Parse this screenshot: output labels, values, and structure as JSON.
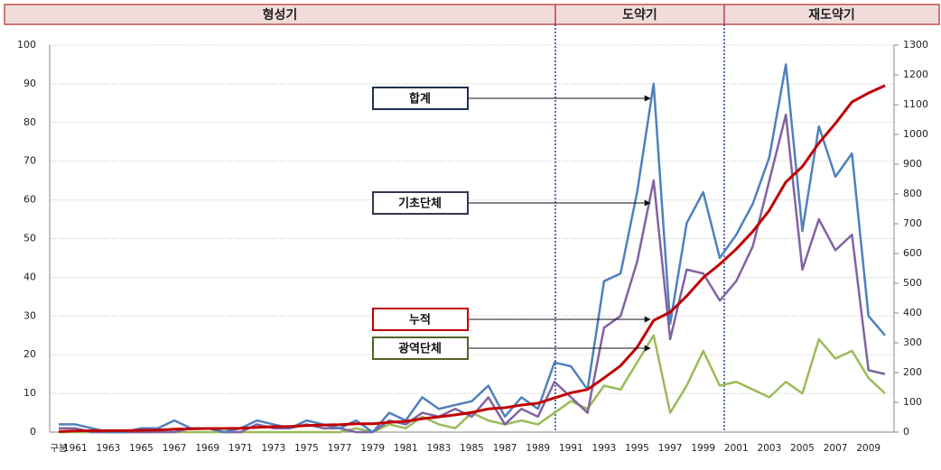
{
  "chart_data": {
    "type": "line",
    "periods": [
      "형성기",
      "도약기",
      "재도약기"
    ],
    "categories": [
      "구분",
      "1961",
      null,
      "1963",
      null,
      "1965",
      null,
      "1967",
      null,
      "1969",
      null,
      "1971",
      null,
      "1973",
      null,
      "1975",
      null,
      "1977",
      null,
      "1979",
      null,
      "1981",
      null,
      "1983",
      null,
      "1985",
      null,
      "1987",
      null,
      "1989",
      null,
      "1991",
      null,
      "1993",
      null,
      "1995",
      null,
      "1997",
      null,
      "1999",
      null,
      "2001",
      null,
      "2003",
      null,
      "2005",
      null,
      "2007",
      null,
      "2009",
      null
    ],
    "series": [
      {
        "name": "합계",
        "color": "#4f81bd",
        "values": [
          2,
          2,
          1,
          0,
          0,
          1,
          1,
          3,
          1,
          1,
          0,
          1,
          3,
          2,
          1,
          3,
          2,
          1,
          3,
          0,
          5,
          3,
          9,
          6,
          7,
          8,
          12,
          4,
          9,
          6,
          18,
          17,
          11,
          39,
          41,
          62,
          90,
          28,
          54,
          62,
          45,
          51,
          59,
          71,
          95,
          52,
          79,
          66,
          72,
          30,
          25
        ]
      },
      {
        "name": "기초단체",
        "color": "#8064a2",
        "values": [
          1,
          1,
          0,
          0,
          0,
          0,
          0,
          0,
          1,
          1,
          0,
          0,
          2,
          1,
          1,
          2,
          1,
          1,
          0,
          0,
          3,
          2,
          5,
          4,
          6,
          4,
          9,
          2,
          6,
          4,
          13,
          9,
          5,
          27,
          30,
          44,
          65,
          24,
          42,
          41,
          34,
          39,
          48,
          65,
          82,
          42,
          55,
          47,
          51,
          16,
          15
        ]
      },
      {
        "name": "광역단체",
        "color": "#9bbb59",
        "values": [
          0,
          0,
          0,
          0,
          0,
          0,
          0,
          0,
          0,
          0,
          0,
          0,
          0,
          0,
          0,
          0,
          0,
          0,
          1,
          0,
          2,
          1,
          4,
          2,
          1,
          5,
          3,
          2,
          3,
          2,
          5,
          8,
          6,
          12,
          11,
          18,
          25,
          5,
          12,
          21,
          12,
          13,
          11,
          9,
          13,
          10,
          24,
          19,
          21,
          14,
          10
        ]
      },
      {
        "name": "누적",
        "color": "#c00000",
        "axis": "y2",
        "values": [
          2,
          4,
          5,
          5,
          5,
          6,
          7,
          10,
          11,
          12,
          12,
          13,
          16,
          18,
          19,
          22,
          24,
          25,
          28,
          28,
          33,
          36,
          45,
          51,
          58,
          66,
          78,
          82,
          91,
          97,
          115,
          132,
          143,
          182,
          223,
          285,
          375,
          403,
          457,
          519,
          564,
          615,
          674,
          745,
          840,
          892,
          971,
          1037,
          1109,
          1139,
          1164
        ]
      }
    ],
    "ylim": [
      0,
      100
    ],
    "yticks": [
      0,
      10,
      20,
      30,
      40,
      50,
      60,
      70,
      80,
      90,
      100
    ],
    "y2lim": [
      0,
      1300
    ],
    "y2ticks": [
      0,
      100,
      200,
      300,
      400,
      500,
      600,
      700,
      800,
      900,
      1000,
      1100,
      1200,
      1300
    ],
    "grid": true
  }
}
